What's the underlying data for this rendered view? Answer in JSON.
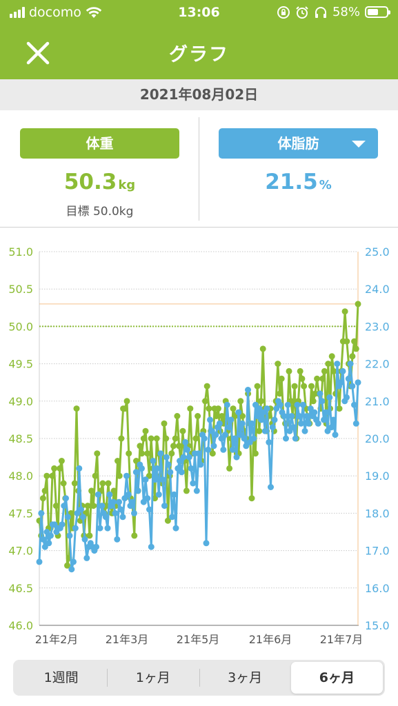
{
  "status_bar": {
    "carrier": "docomo",
    "time": "13:06",
    "battery": "58%",
    "battery_level": 0.58
  },
  "header": {
    "title": "グラフ"
  },
  "date": "2021年08月02日",
  "weight": {
    "button_label": "体重",
    "value": "50.3",
    "unit": "kg",
    "goal": "目標 50.0kg"
  },
  "body_fat": {
    "button_label": "体脂肪",
    "value": "21.5",
    "unit": "%"
  },
  "tabs": [
    {
      "label": "1週間",
      "active": false
    },
    {
      "label": "1ヶ月",
      "active": false
    },
    {
      "label": "3ヶ月",
      "active": false
    },
    {
      "label": "6ヶ月",
      "active": true
    }
  ],
  "colors": {
    "brand": "#8cbc35",
    "weight": "#8cbc35",
    "body_fat": "#55aee0",
    "latest_marker": "#f5c08a"
  },
  "chart_data": {
    "type": "line",
    "x_tick_labels": [
      "21年2月",
      "21年3月",
      "21年5月",
      "21年6月",
      "21年7月"
    ],
    "y_left": {
      "label": "体重",
      "ticks": [
        "51.0",
        "50.5",
        "50.0",
        "49.5",
        "49.0",
        "48.5",
        "48.0",
        "47.5",
        "47.0",
        "46.5",
        "46.0"
      ],
      "min": 46.0,
      "max": 51.0
    },
    "y_right": {
      "label": "体脂肪",
      "ticks": [
        "25.0",
        "24.0",
        "23.0",
        "22.0",
        "21.0",
        "20.0",
        "19.0",
        "18.0",
        "17.0",
        "16.0",
        "15.0"
      ],
      "min": 15.0,
      "max": 25.0
    },
    "goal_weight": 50.0,
    "latest_weight": 50.3,
    "grid": true,
    "series": [
      {
        "name": "体重",
        "axis": "left",
        "values": [
          47.4,
          47.2,
          47.7,
          47.8,
          48.0,
          47.3,
          47.3,
          48.0,
          48.1,
          47.6,
          47.2,
          48.1,
          48.2,
          47.9,
          47.7,
          46.8,
          46.9,
          47.5,
          47.3,
          47.9,
          48.9,
          47.8,
          47.4,
          47.6,
          47.2,
          47.5,
          47.6,
          47.2,
          47.8,
          47.6,
          48.0,
          48.3,
          47.6,
          47.8,
          47.9,
          47.5,
          47.6,
          47.9,
          47.6,
          47.5,
          47.8,
          47.6,
          48.2,
          48.0,
          48.5,
          48.9,
          48.9,
          49.0,
          48.3,
          47.7,
          47.6,
          47.2,
          48.2,
          47.8,
          48.4,
          48.3,
          48.5,
          48.6,
          48.3,
          48.0,
          48.5,
          48.1,
          47.7,
          48.5,
          48.3,
          48.0,
          47.9,
          48.7,
          48.5,
          47.4,
          48.0,
          48.3,
          48.4,
          48.5,
          48.8,
          48.4,
          48.2,
          48.6,
          48.2,
          47.8,
          48.4,
          48.9,
          48.3,
          48.3,
          48.5,
          48.8,
          48.3,
          48.2,
          48.6,
          49.0,
          49.2,
          48.9,
          48.6,
          48.3,
          48.9,
          48.8,
          48.9,
          48.6,
          48.8,
          48.7,
          49.0,
          48.6,
          48.1,
          48.5,
          48.9,
          48.8,
          48.3,
          48.3,
          49.0,
          48.8,
          48.6,
          48.5,
          49.1,
          48.7,
          47.7,
          48.6,
          48.3,
          49.2,
          48.6,
          49.0,
          49.7,
          48.9,
          48.6,
          48.8,
          48.9,
          48.7,
          48.6,
          49.0,
          49.5,
          49.1,
          49.3,
          48.8,
          48.7,
          48.7,
          49.4,
          49.0,
          48.8,
          49.2,
          48.5,
          49.0,
          49.4,
          49.3,
          49.2,
          48.9,
          48.8,
          48.7,
          49.2,
          49.0,
          49.1,
          49.3,
          49.1,
          48.9,
          49.3,
          49.4,
          48.7,
          49.5,
          48.9,
          49.6,
          49.4,
          49.1,
          49.2,
          48.9,
          49.4,
          49.8,
          50.2,
          49.8,
          49.5,
          49.2,
          49.6,
          49.8,
          49.7,
          50.3
        ]
      },
      {
        "name": "体脂肪",
        "axis": "right",
        "values": [
          16.7,
          18.0,
          17.3,
          17.1,
          17.5,
          17.2,
          17.4,
          17.7,
          17.7,
          17.5,
          17.6,
          17.6,
          17.7,
          18.2,
          18.4,
          17.9,
          17.4,
          16.5,
          16.7,
          17.6,
          18.0,
          19.2,
          18.1,
          17.9,
          17.3,
          16.8,
          17.1,
          17.2,
          17.1,
          17.0,
          17.1,
          18.5,
          17.6,
          18.2,
          18.0,
          17.9,
          17.6,
          18.5,
          18.2,
          18.3,
          18.0,
          17.3,
          18.3,
          18.1,
          17.9,
          18.4,
          19.0,
          18.5,
          18.2,
          18.3,
          18.0,
          19.1,
          18.6,
          19.3,
          19.2,
          18.3,
          18.9,
          18.4,
          18.1,
          17.1,
          19.4,
          18.9,
          19.2,
          18.5,
          19.6,
          18.9,
          18.2,
          19.5,
          19.3,
          19.1,
          17.9,
          18.5,
          17.6,
          19.2,
          19.4,
          19.1,
          19.5,
          19.9,
          19.7,
          19.5,
          19.2,
          18.8,
          19.6,
          18.6,
          19.6,
          19.3,
          20.1,
          20.0,
          17.2,
          19.7,
          20.5,
          20.2,
          19.8,
          20.1,
          20.3,
          20.4,
          20.0,
          19.7,
          20.1,
          20.9,
          20.3,
          20.5,
          19.7,
          20.0,
          19.5,
          20.7,
          20.1,
          20.4,
          20.0,
          19.8,
          21.3,
          19.9,
          20.4,
          20.0,
          20.9,
          20.6,
          20.8,
          20.5,
          20.7,
          20.2,
          20.8,
          19.9,
          18.7,
          20.3,
          20.5,
          20.8,
          21.0,
          20.9,
          20.7,
          20.6,
          20.0,
          20.9,
          20.2,
          20.6,
          20.3,
          20.0,
          20.9,
          20.6,
          20.4,
          20.9,
          20.2,
          20.6,
          20.4,
          20.8,
          20.6,
          20.7,
          20.5,
          20.4,
          21.2,
          21.0,
          20.5,
          20.7,
          20.2,
          21.1,
          20.3,
          20.5,
          20.1,
          22.0,
          21.4,
          21.5,
          21.8,
          21.0,
          21.1,
          21.6,
          22.0,
          21.4,
          20.9,
          20.4,
          21.5
        ]
      }
    ]
  }
}
